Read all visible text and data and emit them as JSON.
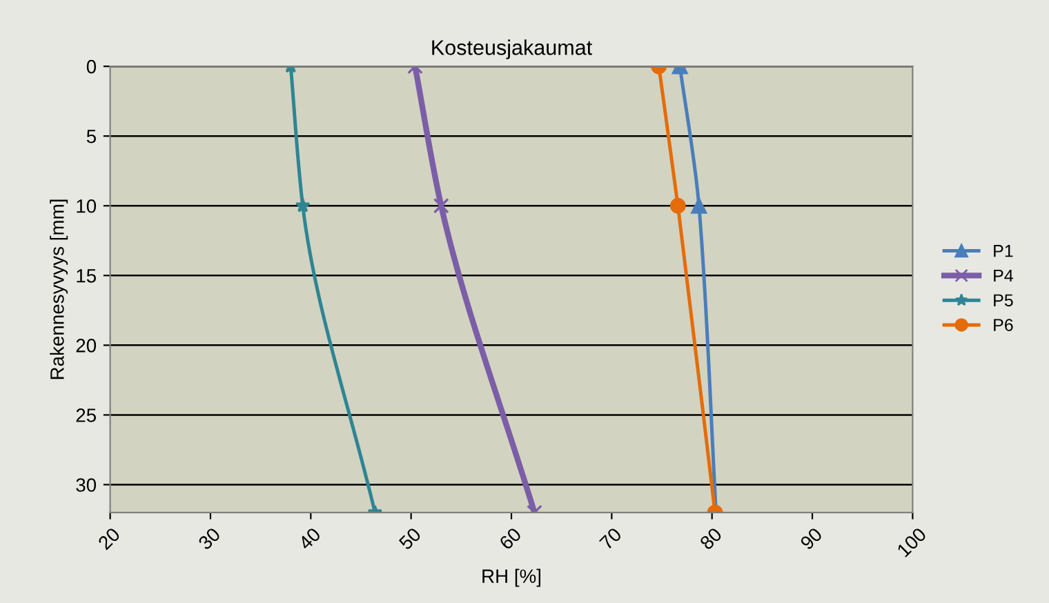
{
  "chart_data": {
    "type": "line",
    "title": "Kosteusjakaumat",
    "xlabel": "RH [%]",
    "ylabel": "Rakennesyvyys [mm]",
    "xlim": [
      20,
      100
    ],
    "xticks": [
      20,
      30,
      40,
      50,
      60,
      70,
      80,
      90,
      100
    ],
    "ylim": [
      32,
      0
    ],
    "yticks": [
      0,
      5,
      10,
      15,
      20,
      25,
      30
    ],
    "grid": "y",
    "legend": "right",
    "series": [
      {
        "name": "P1",
        "color": "#4a7ebb",
        "marker": "triangle",
        "x": [
          76.8,
          78.7,
          80.4
        ],
        "values": [
          0,
          10,
          32
        ]
      },
      {
        "name": "P4",
        "color": "#7b5ea7",
        "marker": "cross",
        "x": [
          50.4,
          53.0,
          62.3
        ],
        "values": [
          0,
          10,
          32
        ]
      },
      {
        "name": "P5",
        "color": "#2e8594",
        "marker": "star",
        "x": [
          38.0,
          39.2,
          46.4
        ],
        "values": [
          0,
          10,
          32
        ]
      },
      {
        "name": "P6",
        "color": "#e46c0a",
        "marker": "circle",
        "x": [
          74.7,
          76.6,
          80.3
        ],
        "values": [
          0,
          10,
          32
        ]
      }
    ]
  }
}
